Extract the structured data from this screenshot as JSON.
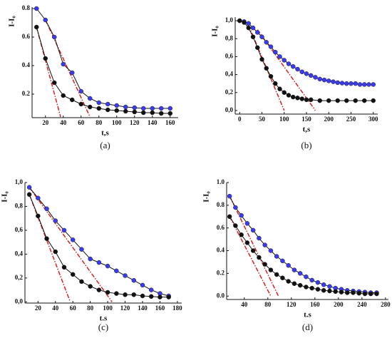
{
  "chart_data": [
    {
      "type": "line",
      "caption": "(a)",
      "xlabel": "t,s",
      "ylabel": "I-I₀",
      "xlim": [
        5,
        169
      ],
      "ylim": [
        0.035,
        0.81
      ],
      "xticks": [
        20,
        40,
        60,
        80,
        100,
        120,
        140,
        160
      ],
      "yticks": [
        0.2,
        0.4,
        0.6,
        0.8
      ],
      "series": [
        {
          "color": "#3a3af0",
          "x": [
            10,
            20,
            30,
            40,
            50,
            60,
            70,
            80,
            90,
            100,
            110,
            120,
            130,
            140,
            150,
            160
          ],
          "values": [
            0.8,
            0.72,
            0.6,
            0.41,
            0.35,
            0.22,
            0.17,
            0.14,
            0.13,
            0.12,
            0.11,
            0.105,
            0.1,
            0.1,
            0.1,
            0.1
          ]
        },
        {
          "color": "#111111",
          "x": [
            10,
            20,
            30,
            40,
            50,
            60,
            70,
            80,
            90,
            100,
            110,
            120,
            130,
            140,
            150,
            160
          ],
          "values": [
            0.67,
            0.45,
            0.28,
            0.19,
            0.16,
            0.13,
            0.11,
            0.1,
            0.09,
            0.085,
            0.08,
            0.075,
            0.07,
            0.07,
            0.065,
            0.065
          ]
        }
      ],
      "tangents": [
        {
          "color": "#e02020",
          "x": [
            20,
            70
          ],
          "values": [
            0.72,
            0.04
          ]
        },
        {
          "color": "#e02020",
          "x": [
            10,
            37
          ],
          "values": [
            0.67,
            0.04
          ]
        }
      ]
    },
    {
      "type": "line",
      "caption": "(b)",
      "xlabel": "t,s",
      "ylabel": "I-I₀",
      "xlim": [
        -10,
        310
      ],
      "ylim": [
        -0.04,
        1.04
      ],
      "xticks": [
        0,
        50,
        100,
        150,
        200,
        250,
        300
      ],
      "yticks": [
        {
          "value": 0,
          "label": "0,0"
        },
        {
          "value": 0.2,
          "label": "0,2"
        },
        {
          "value": 0.4,
          "label": "0,4"
        },
        {
          "value": 0.6,
          "label": "0,6"
        },
        {
          "value": 0.8,
          "label": "0,8"
        },
        {
          "value": 1,
          "label": "1,0"
        }
      ],
      "series": [
        {
          "color": "#3a3af0",
          "x": [
            0,
            10,
            20,
            30,
            40,
            50,
            60,
            70,
            80,
            90,
            100,
            110,
            120,
            130,
            140,
            150,
            160,
            170,
            180,
            190,
            200,
            210,
            220,
            230,
            240,
            250,
            260,
            270,
            280,
            290,
            300
          ],
          "values": [
            1.0,
            0.99,
            0.97,
            0.92,
            0.87,
            0.82,
            0.76,
            0.71,
            0.65,
            0.6,
            0.56,
            0.52,
            0.49,
            0.46,
            0.43,
            0.41,
            0.39,
            0.37,
            0.35,
            0.34,
            0.33,
            0.32,
            0.31,
            0.305,
            0.3,
            0.3,
            0.3,
            0.29,
            0.29,
            0.29,
            0.29
          ]
        },
        {
          "color": "#111111",
          "x": [
            0,
            10,
            20,
            30,
            40,
            50,
            60,
            70,
            80,
            90,
            100,
            110,
            120,
            130,
            140,
            150,
            160,
            180,
            200,
            220,
            240,
            260,
            280,
            300
          ],
          "values": [
            1.0,
            0.98,
            0.92,
            0.82,
            0.7,
            0.57,
            0.47,
            0.38,
            0.3,
            0.24,
            0.2,
            0.17,
            0.15,
            0.14,
            0.13,
            0.12,
            0.12,
            0.11,
            0.11,
            0.11,
            0.11,
            0.11,
            0.11,
            0.11
          ]
        }
      ],
      "tangents": [
        {
          "color": "#e02020",
          "x": [
            40,
            170
          ],
          "values": [
            0.9,
            0
          ]
        },
        {
          "color": "#e02020",
          "x": [
            20,
            100
          ],
          "values": [
            0.95,
            0
          ]
        }
      ]
    },
    {
      "type": "line",
      "caption": "(c)",
      "xlabel": "t.s",
      "ylabel": "I-I₀",
      "xlim": [
        5,
        185
      ],
      "ylim": [
        -0.01,
        1.0
      ],
      "xticks": [
        20,
        40,
        60,
        80,
        100,
        120,
        140,
        160,
        180
      ],
      "yticks": [
        {
          "value": 0,
          "label": "0,0"
        },
        {
          "value": 0.2,
          "label": "0,2"
        },
        {
          "value": 0.4,
          "label": "0,4"
        },
        {
          "value": 0.6,
          "label": "0,6"
        },
        {
          "value": 0.8,
          "label": "0,8"
        },
        {
          "value": 1,
          "label": "1,0"
        }
      ],
      "series": [
        {
          "color": "#3a3af0",
          "x": [
            10,
            20,
            30,
            40,
            50,
            60,
            70,
            80,
            90,
            100,
            110,
            120,
            130,
            140,
            150,
            160,
            170
          ],
          "values": [
            0.96,
            0.87,
            0.78,
            0.68,
            0.6,
            0.52,
            0.44,
            0.36,
            0.33,
            0.3,
            0.26,
            0.22,
            0.18,
            0.14,
            0.1,
            0.07,
            0.05
          ]
        },
        {
          "color": "#111111",
          "x": [
            10,
            20,
            30,
            40,
            50,
            60,
            70,
            80,
            90,
            100,
            110,
            120,
            130,
            140,
            150,
            160,
            170
          ],
          "values": [
            0.9,
            0.72,
            0.53,
            0.42,
            0.29,
            0.23,
            0.17,
            0.13,
            0.1,
            0.08,
            0.07,
            0.06,
            0.06,
            0.05,
            0.045,
            0.04,
            0.04
          ]
        }
      ],
      "tangents": [
        {
          "color": "#e02020",
          "x": [
            10,
            105
          ],
          "values": [
            0.96,
            0
          ]
        },
        {
          "color": "#e02020",
          "x": [
            10,
            57
          ],
          "values": [
            0.9,
            0
          ]
        }
      ]
    },
    {
      "type": "line",
      "caption": "(d)",
      "xlabel": "t.s",
      "ylabel": "I-I₀",
      "xlim": [
        10,
        285
      ],
      "ylim": [
        -0.03,
        1.0
      ],
      "xticks": [
        40,
        80,
        120,
        160,
        200,
        240,
        280
      ],
      "yticks": [
        {
          "value": 0,
          "label": "0.0"
        },
        0.2,
        0.4,
        0.6,
        0.8,
        {
          "value": 1,
          "label": "1.0"
        }
      ],
      "series": [
        {
          "color": "#3a3af0",
          "x": [
            15,
            25,
            35,
            45,
            55,
            65,
            75,
            85,
            95,
            105,
            115,
            125,
            135,
            145,
            155,
            165,
            175,
            185,
            195,
            205,
            215,
            225,
            235,
            245,
            255,
            265
          ],
          "values": [
            0.88,
            0.78,
            0.71,
            0.64,
            0.58,
            0.51,
            0.45,
            0.4,
            0.35,
            0.31,
            0.27,
            0.23,
            0.2,
            0.17,
            0.14,
            0.12,
            0.1,
            0.085,
            0.07,
            0.06,
            0.05,
            0.045,
            0.04,
            0.035,
            0.03,
            0.03
          ]
        },
        {
          "color": "#111111",
          "x": [
            15,
            25,
            35,
            45,
            55,
            65,
            75,
            85,
            95,
            105,
            115,
            125,
            135,
            145,
            155,
            165,
            175,
            185,
            195,
            205,
            215,
            225,
            235,
            245,
            255,
            265
          ],
          "values": [
            0.7,
            0.62,
            0.54,
            0.47,
            0.4,
            0.34,
            0.28,
            0.23,
            0.19,
            0.16,
            0.13,
            0.11,
            0.095,
            0.08,
            0.07,
            0.06,
            0.05,
            0.045,
            0.04,
            0.035,
            0.03,
            0.03,
            0.025,
            0.02,
            0.02,
            0.02
          ]
        }
      ],
      "tangents": [
        {
          "color": "#e02020",
          "x": [
            15,
            98
          ],
          "values": [
            0.88,
            0
          ]
        },
        {
          "color": "#e02020",
          "x": [
            15,
            85
          ],
          "values": [
            0.7,
            0
          ]
        }
      ]
    }
  ]
}
